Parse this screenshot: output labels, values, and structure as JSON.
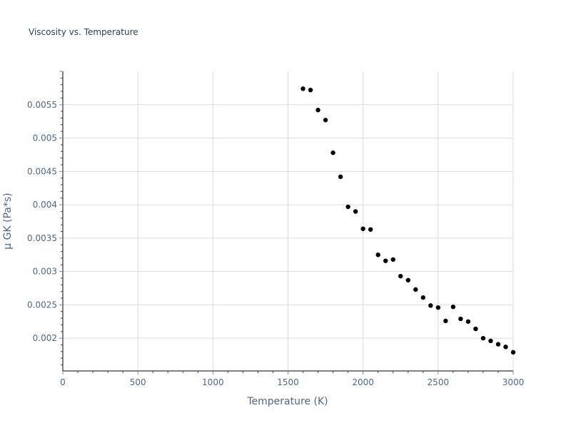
{
  "title": "Viscosity vs. Temperature",
  "colors": {
    "grid": "#dcdcdc",
    "axis_line": "#000000",
    "marker": "#000000",
    "text": "#506784",
    "title": "#2a3f5f"
  },
  "chart_data": {
    "type": "scatter",
    "title": "Viscosity vs. Temperature",
    "xlabel": "Temperature (K)",
    "ylabel": "μ GK (Pa*s)",
    "xlim": [
      0,
      3000
    ],
    "ylim": [
      0.00151,
      0.006
    ],
    "grid": true,
    "legend": null,
    "x_ticks": [
      0,
      500,
      1000,
      1500,
      2000,
      2500,
      3000
    ],
    "x_tick_labels": [
      "0",
      "500",
      "1000",
      "1500",
      "2000",
      "2500",
      "3000"
    ],
    "y_ticks": [
      0.002,
      0.0025,
      0.003,
      0.0035,
      0.004,
      0.0045,
      0.005,
      0.0055
    ],
    "y_tick_labels": [
      "0.002",
      "0.0025",
      "0.003",
      "0.0035",
      "0.004",
      "0.0045",
      "0.005",
      "0.0055"
    ],
    "series": [
      {
        "name": "μ GK",
        "marker": "circle",
        "x": [
          1600,
          1650,
          1700,
          1750,
          1800,
          1850,
          1900,
          1950,
          2000,
          2050,
          2100,
          2150,
          2200,
          2250,
          2300,
          2350,
          2400,
          2450,
          2500,
          2550,
          2600,
          2650,
          2700,
          2750,
          2800,
          2850,
          2900,
          2950,
          3000
        ],
        "y": [
          0.00574,
          0.00572,
          0.00542,
          0.00527,
          0.00478,
          0.00442,
          0.00397,
          0.0039,
          0.00364,
          0.00363,
          0.00325,
          0.00316,
          0.00318,
          0.00293,
          0.00287,
          0.00273,
          0.00261,
          0.00249,
          0.00246,
          0.00226,
          0.00247,
          0.00229,
          0.00225,
          0.00214,
          0.002,
          0.00196,
          0.00191,
          0.00187,
          0.00179
        ]
      }
    ]
  }
}
